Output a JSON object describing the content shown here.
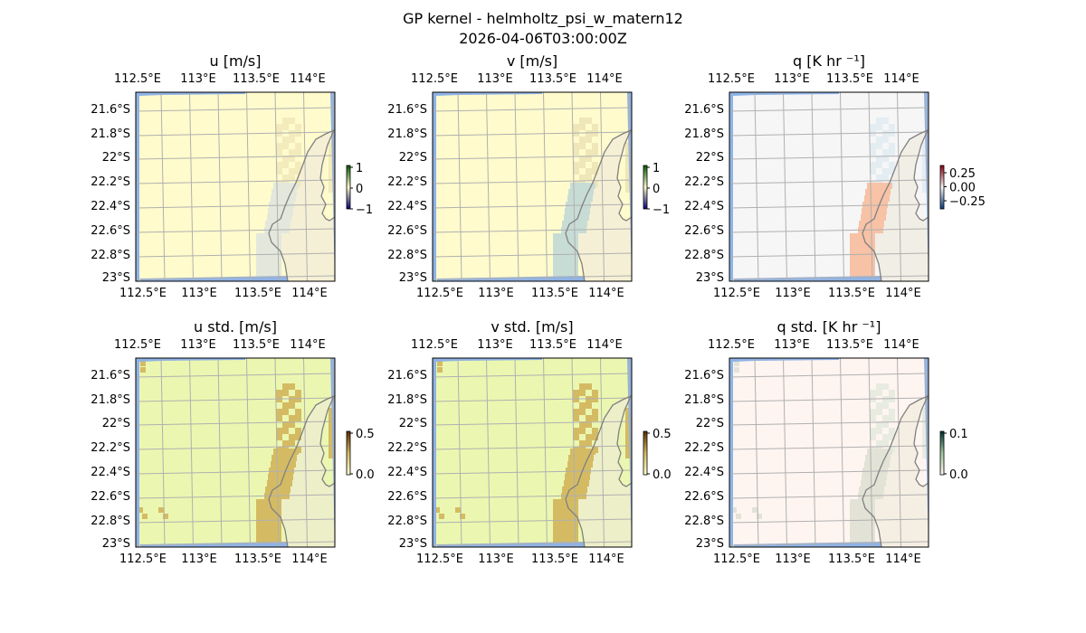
{
  "chart_data": {
    "type": "heatmap",
    "title": "GP kernel - helmholtz_psi_w_matern12",
    "subtitle": "2026-04-06T03:00:00Z",
    "x_ticks": [
      "112.5°E",
      "113°E",
      "113.5°E",
      "114°E"
    ],
    "y_ticks": [
      "21.6°S",
      "21.8°S",
      "22°S",
      "22.2°S",
      "22.4°S",
      "22.6°S",
      "22.8°S",
      "23°S"
    ],
    "xlim": [
      112.47,
      114.2
    ],
    "ylim": [
      -23.0,
      -21.47
    ],
    "grid": true,
    "panels": [
      {
        "title": "u [m/s]",
        "cbar_ticks": [
          "1",
          "0",
          "−1"
        ],
        "vmin": -1,
        "vmax": 1,
        "bg": "#fffbcc",
        "blob": "#e4e8dc",
        "blob2": "#f3ebbb",
        "cbar": [
          "#04007a",
          "#fffbcc",
          "#005a00"
        ]
      },
      {
        "title": "v [m/s]",
        "cbar_ticks": [
          "1",
          "0",
          "−1"
        ],
        "vmin": -1,
        "vmax": 1,
        "bg": "#fffbcc",
        "blob": "#c8dcd6",
        "blob2": "#efe7b8",
        "cbar": [
          "#04007a",
          "#fffbcc",
          "#005a00"
        ]
      },
      {
        "title": "q [K hr ⁻¹]",
        "cbar_ticks": [
          "0.25",
          "0.00",
          "−0.25"
        ],
        "vmin": -0.25,
        "vmax": 0.25,
        "bg": "#f6f6f6",
        "blob": "#f7c2a6",
        "blob2": "#e4edf2",
        "cbar": [
          "#0a3a7a",
          "#f6f6f6",
          "#8a0010"
        ]
      },
      {
        "title": "u std. [m/s]",
        "cbar_ticks": [
          "0.5",
          "0.0"
        ],
        "vmin": 0,
        "vmax": 0.5,
        "bg": "#ebf7b0",
        "blob": "#d4bb63",
        "blob2": "#d4bb63",
        "cbar": [
          "#ffffd0",
          "#d4bb63",
          "#5a2a00"
        ]
      },
      {
        "title": "v std. [m/s]",
        "cbar_ticks": [
          "0.5",
          "0.0"
        ],
        "vmin": 0,
        "vmax": 0.5,
        "bg": "#ebf7b0",
        "blob": "#d4bb63",
        "blob2": "#d4bb63",
        "cbar": [
          "#ffffd0",
          "#d4bb63",
          "#5a2a00"
        ]
      },
      {
        "title": "q std. [K hr ⁻¹]",
        "cbar_ticks": [
          "0.1",
          "0.0"
        ],
        "vmin": 0,
        "vmax": 0.1,
        "bg": "#fff5f0",
        "blob": "#e2e3d6",
        "blob2": "#e8ebe0",
        "cbar": [
          "#fff5f0",
          "#a0c8a0",
          "#003030"
        ]
      }
    ],
    "land_color": "#eeeadb",
    "nodata_color": "#8fb3e6",
    "coast_color": "#808080"
  }
}
